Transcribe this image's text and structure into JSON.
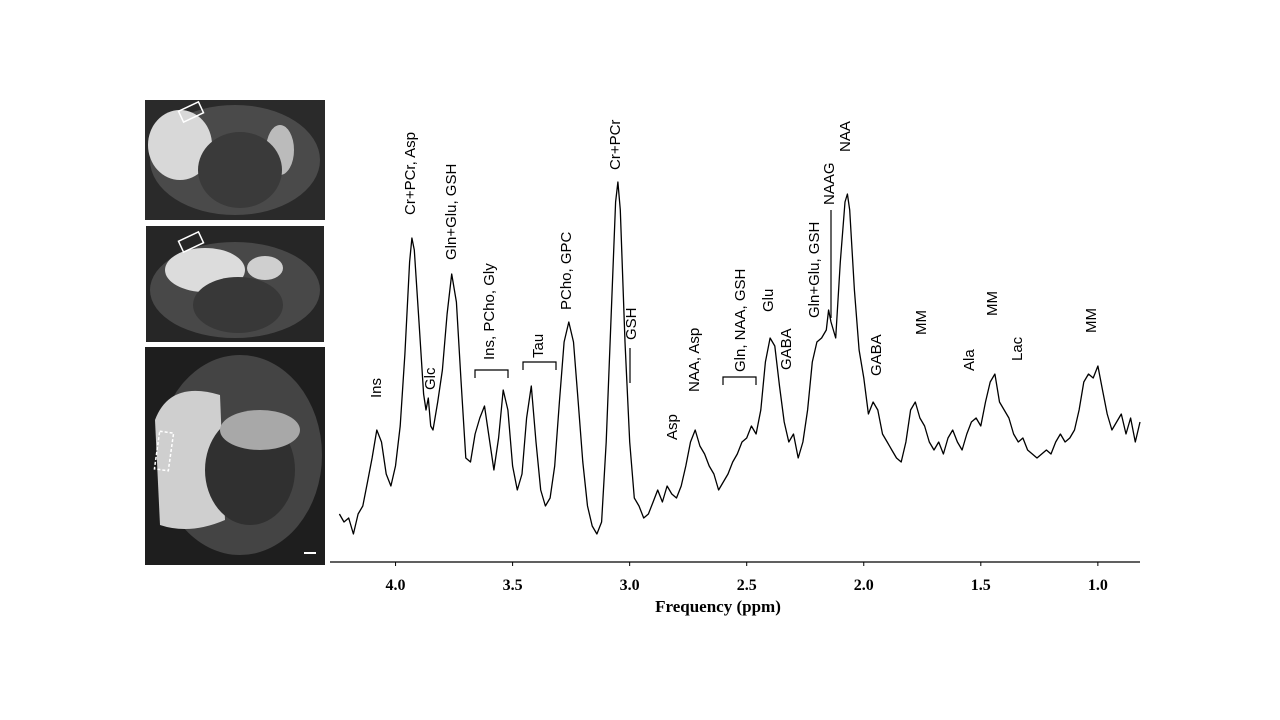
{
  "chart_data": {
    "type": "line",
    "x_label": "Frequency (ppm)",
    "xlim": [
      4.28,
      0.82
    ],
    "ylim": [
      0,
      100
    ],
    "xticks": [
      {
        "value": 4,
        "label": "4.0"
      },
      3.5,
      {
        "value": 3,
        "label": "3.0"
      },
      2.5,
      {
        "value": 2,
        "label": "2.0"
      },
      1.5,
      {
        "value": 1,
        "label": "1.0"
      }
    ],
    "color": "#000000",
    "annotations": [
      "Ins",
      "Cr+PCr, Asp",
      "Glc",
      "Gln+Glu, GSH",
      "Ins, PCho, Gly",
      "Tau",
      "PCho, GPC",
      "Cr+PCr",
      "GSH",
      "Asp",
      "NAA, Asp",
      "Gln, NAA, GSH",
      "Glu",
      "GABA",
      "Gln+Glu, GSH",
      "NAAG",
      "NAA",
      "GABA",
      "MM",
      "Ala",
      "MM",
      "Lac",
      "MM"
    ],
    "x": [
      4.24,
      4.22,
      4.2,
      4.18,
      4.16,
      4.14,
      4.12,
      4.1,
      4.08,
      4.06,
      4.04,
      4.02,
      4.0,
      3.98,
      3.96,
      3.94,
      3.93,
      3.92,
      3.9,
      3.88,
      3.87,
      3.86,
      3.85,
      3.84,
      3.82,
      3.8,
      3.78,
      3.76,
      3.74,
      3.72,
      3.7,
      3.68,
      3.66,
      3.64,
      3.62,
      3.6,
      3.58,
      3.56,
      3.54,
      3.52,
      3.5,
      3.48,
      3.46,
      3.44,
      3.42,
      3.4,
      3.38,
      3.36,
      3.34,
      3.32,
      3.3,
      3.28,
      3.26,
      3.24,
      3.22,
      3.2,
      3.18,
      3.16,
      3.14,
      3.12,
      3.1,
      3.08,
      3.06,
      3.05,
      3.04,
      3.02,
      3.0,
      2.98,
      2.96,
      2.94,
      2.92,
      2.9,
      2.88,
      2.86,
      2.84,
      2.82,
      2.8,
      2.78,
      2.76,
      2.74,
      2.72,
      2.7,
      2.68,
      2.66,
      2.64,
      2.62,
      2.6,
      2.58,
      2.56,
      2.54,
      2.52,
      2.5,
      2.48,
      2.46,
      2.44,
      2.42,
      2.4,
      2.38,
      2.36,
      2.34,
      2.32,
      2.3,
      2.28,
      2.26,
      2.24,
      2.22,
      2.2,
      2.18,
      2.16,
      2.15,
      2.14,
      2.12,
      2.1,
      2.08,
      2.07,
      2.06,
      2.04,
      2.02,
      2.0,
      1.98,
      1.96,
      1.94,
      1.92,
      1.9,
      1.88,
      1.86,
      1.84,
      1.82,
      1.8,
      1.78,
      1.76,
      1.74,
      1.72,
      1.7,
      1.68,
      1.66,
      1.64,
      1.62,
      1.6,
      1.58,
      1.56,
      1.54,
      1.52,
      1.5,
      1.48,
      1.46,
      1.44,
      1.42,
      1.4,
      1.38,
      1.36,
      1.34,
      1.32,
      1.3,
      1.28,
      1.26,
      1.24,
      1.22,
      1.2,
      1.18,
      1.16,
      1.14,
      1.12,
      1.1,
      1.08,
      1.06,
      1.04,
      1.02,
      1.0,
      0.98,
      0.96,
      0.94,
      0.92,
      0.9,
      0.88,
      0.86,
      0.84,
      0.82
    ],
    "values": [
      12,
      10,
      11,
      7,
      12,
      14,
      20,
      26,
      33,
      30,
      22,
      19,
      24,
      34,
      52,
      75,
      81,
      78,
      60,
      42,
      38,
      41,
      34,
      33,
      40,
      48,
      62,
      72,
      65,
      45,
      26,
      25,
      32,
      36,
      39,
      31,
      23,
      31,
      43,
      38,
      24,
      18,
      22,
      36,
      44,
      30,
      18,
      14,
      16,
      24,
      40,
      55,
      60,
      55,
      40,
      25,
      14,
      9,
      7,
      10,
      30,
      60,
      90,
      95,
      88,
      55,
      30,
      16,
      14,
      11,
      12,
      15,
      18,
      15,
      19,
      17,
      16,
      19,
      24,
      30,
      33,
      29,
      27,
      24,
      22,
      18,
      20,
      22,
      25,
      27,
      30,
      31,
      34,
      32,
      38,
      50,
      56,
      54,
      44,
      35,
      30,
      32,
      26,
      30,
      38,
      50,
      55,
      56,
      58,
      63,
      60,
      56,
      75,
      90,
      92,
      88,
      68,
      53,
      46,
      37,
      40,
      38,
      32,
      30,
      28,
      26,
      25,
      30,
      38,
      40,
      36,
      34,
      30,
      28,
      30,
      27,
      31,
      33,
      30,
      28,
      32,
      35,
      36,
      34,
      40,
      45,
      47,
      40,
      38,
      36,
      32,
      30,
      31,
      28,
      27,
      26,
      27,
      28,
      27,
      30,
      32,
      30,
      31,
      33,
      38,
      45,
      47,
      46,
      49,
      43,
      37,
      33,
      35,
      37,
      32,
      36,
      30,
      35
    ]
  }
}
